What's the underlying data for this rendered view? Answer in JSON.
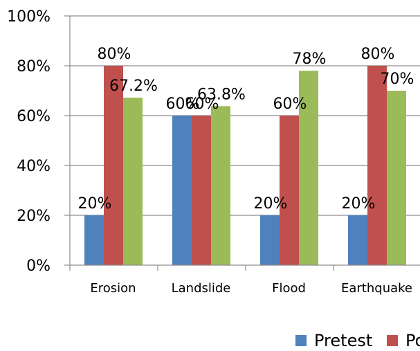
{
  "chart_data": {
    "type": "bar",
    "categories": [
      "Erosion",
      "Landslide",
      "Flood",
      "Earthquake"
    ],
    "series": [
      {
        "name": "Pretest",
        "color": "#4f81bd",
        "values": [
          20,
          60,
          20,
          20
        ],
        "labels": [
          "20%",
          "60%",
          "20%",
          "20%"
        ]
      },
      {
        "name": "Po",
        "color": "#c0504d",
        "values": [
          80,
          60,
          60,
          80
        ],
        "labels": [
          "80%",
          "60%",
          "60%",
          "80%"
        ]
      },
      {
        "name": "",
        "color": "#9bbb59",
        "values": [
          67.2,
          63.8,
          78,
          70
        ],
        "labels": [
          "67.2%",
          "63.8%",
          "78%",
          "70%"
        ]
      }
    ],
    "yticks": [
      "0%",
      "20%",
      "40%",
      "60%",
      "80%",
      "100%"
    ],
    "ylim": [
      0,
      100
    ],
    "title": "",
    "xlabel": "",
    "ylabel": "",
    "legend_position": "bottom"
  }
}
